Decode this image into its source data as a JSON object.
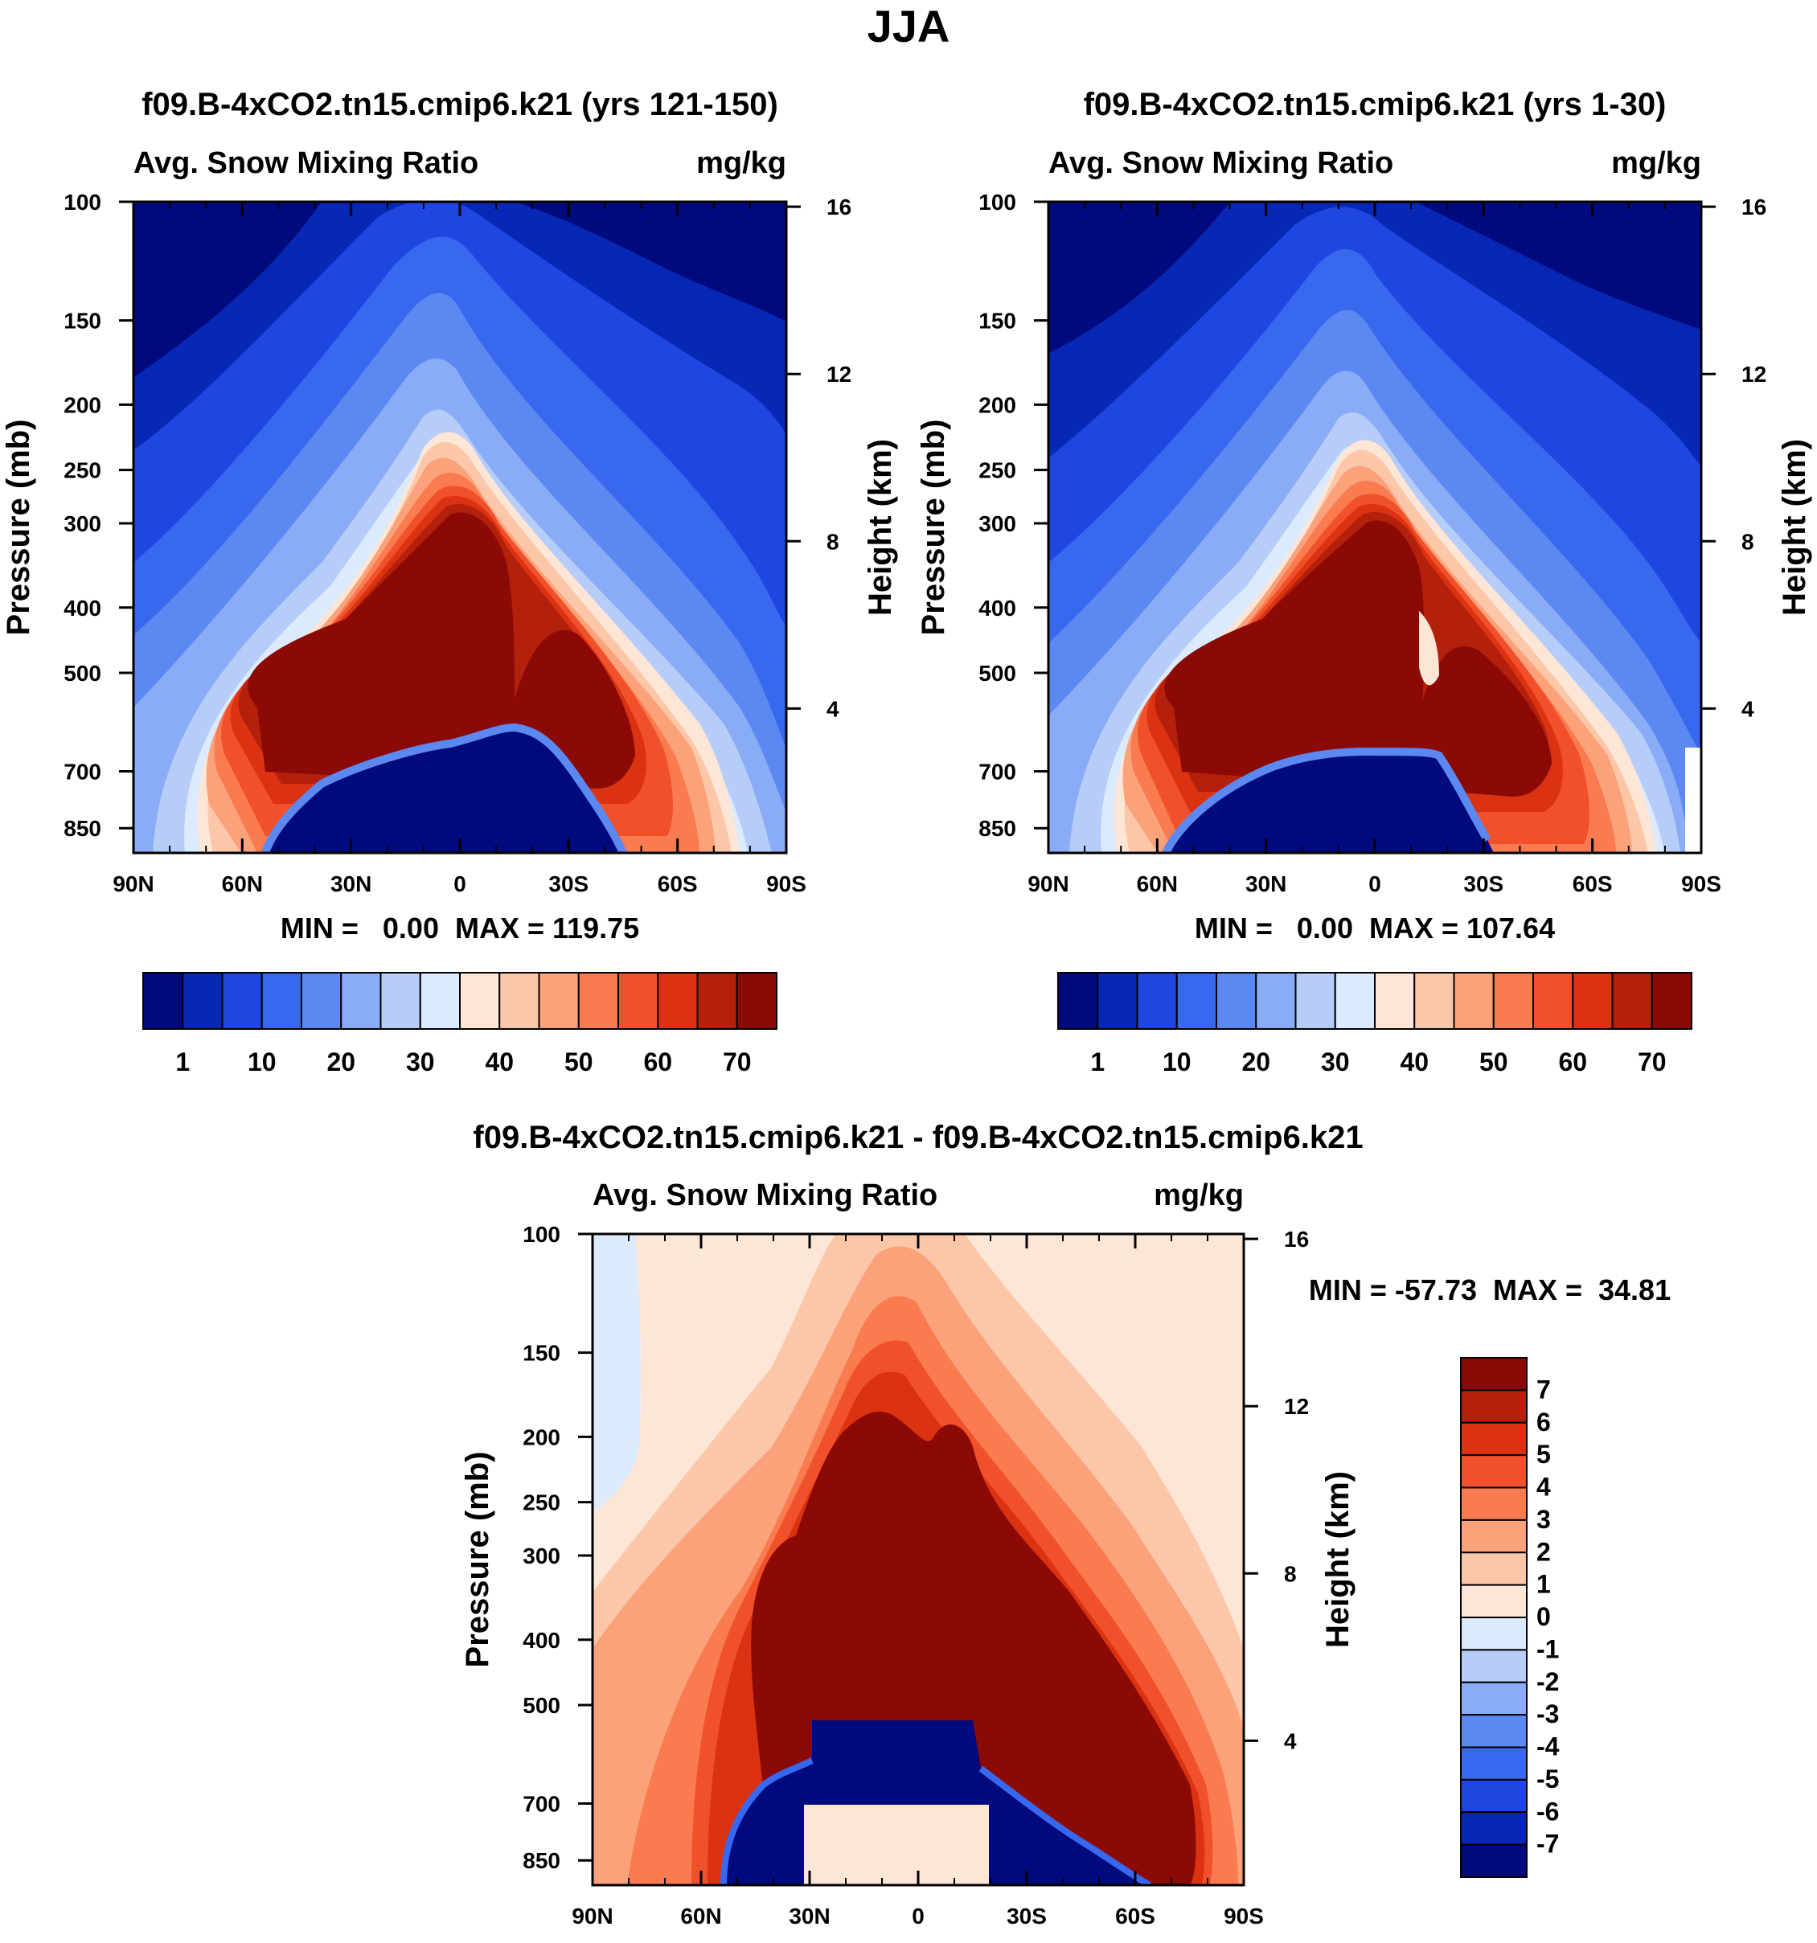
{
  "page_title": "JJA",
  "chart_data": [
    {
      "type": "heatmap",
      "title": "f09.B-4xCO2.tn15.cmip6.k21 (yrs 121-150)",
      "variable": "Avg. Snow Mixing Ratio",
      "units": "mg/kg",
      "ylabel": "Pressure (mb)",
      "ylabel_right": "Height (km)",
      "x_ticks": [
        "90N",
        "60N",
        "30N",
        "0",
        "30S",
        "60S",
        "90S"
      ],
      "x_values": [
        90,
        60,
        30,
        0,
        -30,
        -60,
        -90
      ],
      "y_ticks": [
        "100",
        "150",
        "200",
        "250",
        "300",
        "400",
        "500",
        "700",
        "850"
      ],
      "y_values": [
        100,
        150,
        200,
        250,
        300,
        400,
        500,
        700,
        850
      ],
      "y_right_ticks": [
        "16",
        "12",
        "8",
        "4"
      ],
      "y_right_values": [
        16,
        12,
        8,
        4
      ],
      "ylim": [
        100,
        925
      ],
      "stats_label": "MIN =   0.00  MAX = 119.75",
      "min": 0.0,
      "max": 119.75,
      "colorbar_labels": [
        "1",
        "10",
        "20",
        "30",
        "40",
        "50",
        "60",
        "70"
      ],
      "colorbar_colors": [
        "#000a7f",
        "#0628b4",
        "#1f46e0",
        "#3868ee",
        "#5c88f2",
        "#8aabf6",
        "#b6cdfa",
        "#dceafd",
        "#fde6d6",
        "#fcc7a9",
        "#fba27a",
        "#f97b4f",
        "#f1512a",
        "#db3212",
        "#b3200b",
        "#8b0a06"
      ]
    },
    {
      "type": "heatmap",
      "title": "f09.B-4xCO2.tn15.cmip6.k21 (yrs 1-30)",
      "variable": "Avg. Snow Mixing Ratio",
      "units": "mg/kg",
      "ylabel": "Pressure (mb)",
      "ylabel_right": "Height (km)",
      "x_ticks": [
        "90N",
        "60N",
        "30N",
        "0",
        "30S",
        "60S",
        "90S"
      ],
      "x_values": [
        90,
        60,
        30,
        0,
        -30,
        -60,
        -90
      ],
      "y_ticks": [
        "100",
        "150",
        "200",
        "250",
        "300",
        "400",
        "500",
        "700",
        "850"
      ],
      "y_values": [
        100,
        150,
        200,
        250,
        300,
        400,
        500,
        700,
        850
      ],
      "y_right_ticks": [
        "16",
        "12",
        "8",
        "4"
      ],
      "y_right_values": [
        16,
        12,
        8,
        4
      ],
      "ylim": [
        100,
        925
      ],
      "stats_label": "MIN =   0.00  MAX = 107.64",
      "min": 0.0,
      "max": 107.64,
      "colorbar_labels": [
        "1",
        "10",
        "20",
        "30",
        "40",
        "50",
        "60",
        "70"
      ],
      "colorbar_colors": [
        "#000a7f",
        "#0628b4",
        "#1f46e0",
        "#3868ee",
        "#5c88f2",
        "#8aabf6",
        "#b6cdfa",
        "#dceafd",
        "#fde6d6",
        "#fcc7a9",
        "#fba27a",
        "#f97b4f",
        "#f1512a",
        "#db3212",
        "#b3200b",
        "#8b0a06"
      ]
    },
    {
      "type": "heatmap",
      "title": "f09.B-4xCO2.tn15.cmip6.k21 - f09.B-4xCO2.tn15.cmip6.k21",
      "variable": "Avg. Snow Mixing Ratio",
      "units": "mg/kg",
      "ylabel": "Pressure (mb)",
      "ylabel_right": "Height (km)",
      "x_ticks": [
        "90N",
        "60N",
        "30N",
        "0",
        "30S",
        "60S",
        "90S"
      ],
      "x_values": [
        90,
        60,
        30,
        0,
        -30,
        -60,
        -90
      ],
      "y_ticks": [
        "100",
        "150",
        "200",
        "250",
        "300",
        "400",
        "500",
        "700",
        "850"
      ],
      "y_values": [
        100,
        150,
        200,
        250,
        300,
        400,
        500,
        700,
        850
      ],
      "y_right_ticks": [
        "16",
        "12",
        "8",
        "4"
      ],
      "y_right_values": [
        16,
        12,
        8,
        4
      ],
      "ylim": [
        100,
        925
      ],
      "stats_label": "MIN = -57.73  MAX =  34.81",
      "min": -57.73,
      "max": 34.81,
      "colorbar_labels": [
        "7",
        "6",
        "5",
        "4",
        "3",
        "2",
        "1",
        "0",
        "-1",
        "-2",
        "-3",
        "-4",
        "-5",
        "-6",
        "-7"
      ],
      "colorbar_colors": [
        "#8b0a06",
        "#b3200b",
        "#db3212",
        "#f1512a",
        "#f97b4f",
        "#fba27a",
        "#fcc7a9",
        "#fde6d6",
        "#dceafd",
        "#b6cdfa",
        "#8aabf6",
        "#5c88f2",
        "#3868ee",
        "#1f46e0",
        "#0628b4",
        "#000a7f"
      ]
    }
  ]
}
